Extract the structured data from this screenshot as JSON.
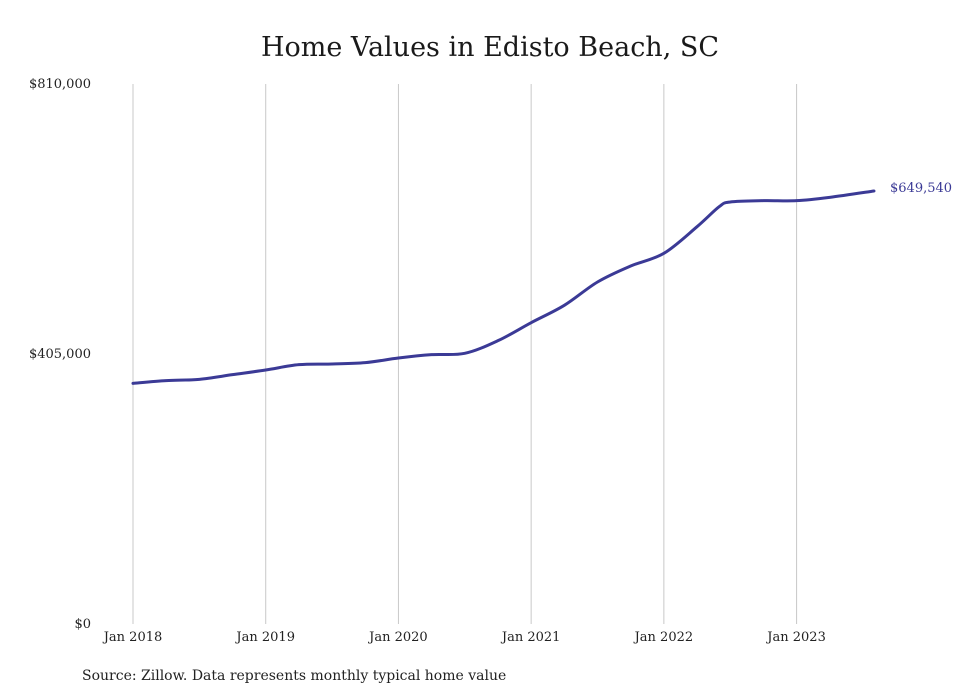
{
  "chart_data": {
    "type": "line",
    "title": "Home Values in Edisto Beach, SC",
    "xlabel": "",
    "ylabel": "",
    "source": "Source: Zillow. Data represents monthly typical home value",
    "ylim": [
      0,
      810000
    ],
    "xlim": [
      "2018-01",
      "2023-08"
    ],
    "y_ticks": [
      {
        "value": 0,
        "label": "$0"
      },
      {
        "value": 405000,
        "label": "$405,000"
      },
      {
        "value": 810000,
        "label": "$810,000"
      }
    ],
    "x_ticks": [
      {
        "date": "2018-01",
        "label": "Jan 2018"
      },
      {
        "date": "2019-01",
        "label": "Jan 2019"
      },
      {
        "date": "2020-01",
        "label": "Jan 2020"
      },
      {
        "date": "2021-01",
        "label": "Jan 2021"
      },
      {
        "date": "2022-01",
        "label": "Jan 2022"
      },
      {
        "date": "2023-01",
        "label": "Jan 2023"
      }
    ],
    "grid": "vertical",
    "line_color": "#3b3a96",
    "end_label": "$649,540",
    "series": [
      {
        "points": [
          {
            "date": "2018-01",
            "value": 361000
          },
          {
            "date": "2018-04",
            "value": 365000
          },
          {
            "date": "2018-07",
            "value": 367000
          },
          {
            "date": "2018-10",
            "value": 374000
          },
          {
            "date": "2019-01",
            "value": 381000
          },
          {
            "date": "2019-04",
            "value": 389000
          },
          {
            "date": "2019-07",
            "value": 390000
          },
          {
            "date": "2019-10",
            "value": 392000
          },
          {
            "date": "2020-01",
            "value": 399000
          },
          {
            "date": "2020-04",
            "value": 404000
          },
          {
            "date": "2020-07",
            "value": 406000
          },
          {
            "date": "2020-10",
            "value": 425000
          },
          {
            "date": "2021-01",
            "value": 452000
          },
          {
            "date": "2021-04",
            "value": 478000
          },
          {
            "date": "2021-07",
            "value": 513000
          },
          {
            "date": "2021-10",
            "value": 537000
          },
          {
            "date": "2022-01",
            "value": 556000
          },
          {
            "date": "2022-04",
            "value": 596000
          },
          {
            "date": "2022-06",
            "value": 626000
          },
          {
            "date": "2022-07",
            "value": 633000
          },
          {
            "date": "2022-10",
            "value": 635000
          },
          {
            "date": "2023-01",
            "value": 635000
          },
          {
            "date": "2023-04",
            "value": 640000
          },
          {
            "date": "2023-08",
            "value": 649540
          }
        ]
      }
    ]
  }
}
